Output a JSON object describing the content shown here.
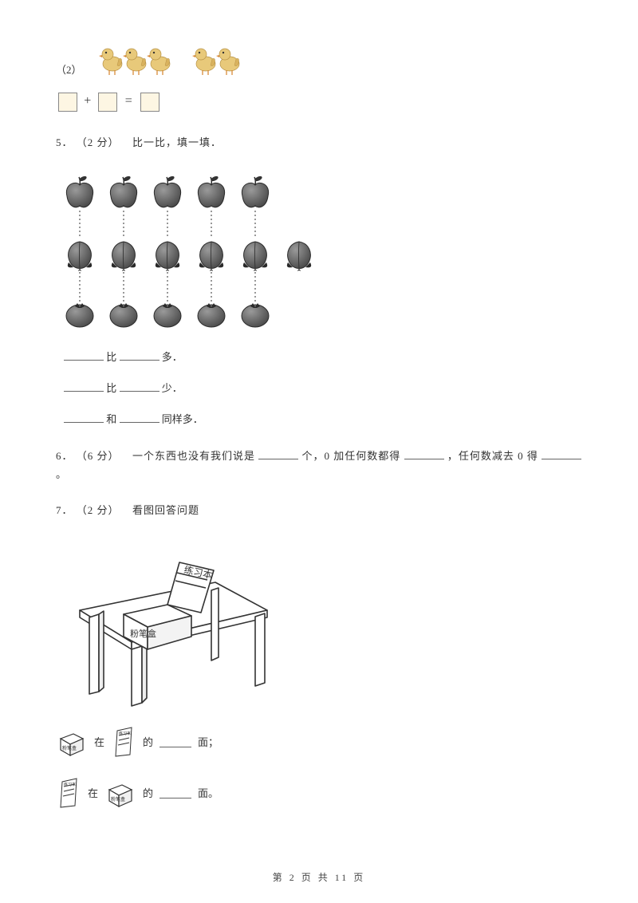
{
  "q2_label": "（2）",
  "eq": {
    "plus": "+",
    "equals": "="
  },
  "q5": {
    "num": "5．",
    "pts": "（2 分）",
    "text": "比一比，填一填．"
  },
  "cmp": {
    "line1_mid": "比",
    "line1_end": "多．",
    "line2_mid": "比",
    "line2_end": "少．",
    "line3_mid": "和",
    "line3_end": "同样多．"
  },
  "q6": {
    "num": "6．",
    "pts": "（6 分）",
    "t1": "一个东西也没有我们说是",
    "t2": "个，0 加任何数都得",
    "t3": "，任何数减去 0 得",
    "t4": "。"
  },
  "q7": {
    "num": "7．",
    "pts": "（2 分）",
    "text": "看图回答问题"
  },
  "labels": {
    "chalkbox": "粉笔盒",
    "notebook": "练习本",
    "zai": "在",
    "de": "的",
    "mian_semi": "面；",
    "mian_period": "面。"
  },
  "footer": "第 2 页 共 11 页",
  "colors": {
    "duck_body": "#e8c97a",
    "duck_beak": "#d98b3a",
    "fruit_fill": "#6b6b6b",
    "fruit_stroke": "#2a2a2a",
    "leaf": "#333333",
    "table_stroke": "#333333",
    "box_fill": "#ffffff",
    "dotted": "#555555"
  },
  "counts": {
    "ducks_group1": 3,
    "ducks_group2": 2,
    "apples": 5,
    "peaches": 6,
    "tomatoes": 5
  }
}
